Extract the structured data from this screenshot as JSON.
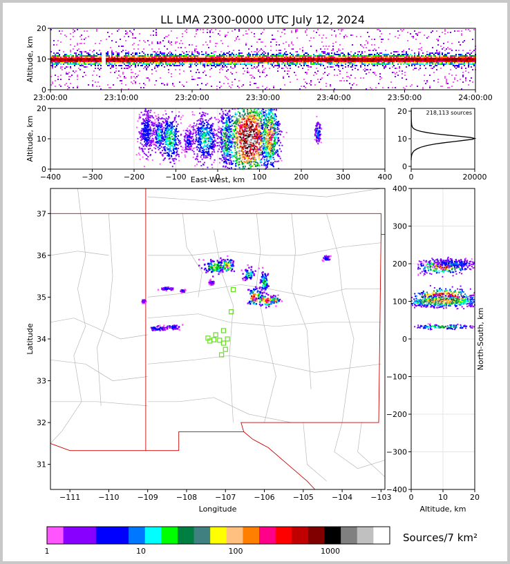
{
  "figure": {
    "title": "LL LMA 2300-0000 UTC July 12, 2024",
    "colorbar_label": "Sources/7 km²",
    "colorbar_ticks": [
      "1",
      "10",
      "100",
      "1000"
    ],
    "colorbar_colors": [
      "#ff55ff",
      "#8800ff",
      "#8800ff",
      "#0000ff",
      "#0000ff",
      "#0077ff",
      "#00ffff",
      "#00ff00",
      "#008040",
      "#408080",
      "#ffff00",
      "#ffc080",
      "#ff8000",
      "#ff0088",
      "#ff0000",
      "#c00000",
      "#800000",
      "#000000",
      "#808080",
      "#c0c0c0",
      "#ffffff"
    ]
  },
  "chart_data": [
    {
      "id": "time-height",
      "type": "heatmap",
      "xlabel": "",
      "ylabel": "Altitude, km",
      "xlim": [
        "23:00:00",
        "24:00:00"
      ],
      "ylim": [
        0,
        20
      ],
      "xticks": [
        "23:00:00",
        "23:10:00",
        "23:20:00",
        "23:30:00",
        "23:40:00",
        "23:50:00",
        "24:00:00"
      ],
      "yticks": [
        "0",
        "10",
        "20"
      ],
      "gap_minutes": [
        7.2,
        7.7
      ],
      "core_altitude_km": 10
    },
    {
      "id": "east-west-altitude",
      "type": "heatmap",
      "xlabel": "East-West, km",
      "ylabel": "Altitude, km",
      "xlim": [
        -400,
        400
      ],
      "ylim": [
        0,
        20
      ],
      "xticks": [
        "−400",
        "−300",
        "−200",
        "−100",
        "0",
        "100",
        "200",
        "300",
        "400"
      ],
      "yticks": [
        "0",
        "10",
        "20"
      ],
      "clusters": [
        {
          "x": -170,
          "z": 12,
          "sx": 10,
          "sz": 4,
          "level": 4
        },
        {
          "x": -140,
          "z": 11,
          "sx": 6,
          "sz": 3,
          "level": 7
        },
        {
          "x": -113,
          "z": 10,
          "sx": 12,
          "sz": 4,
          "level": 8
        },
        {
          "x": -70,
          "z": 9,
          "sx": 6,
          "sz": 2,
          "level": 4
        },
        {
          "x": -30,
          "z": 10,
          "sx": 15,
          "sz": 4,
          "level": 7
        },
        {
          "x": 20,
          "z": 10,
          "sx": 8,
          "sz": 5,
          "level": 10
        },
        {
          "x": 75,
          "z": 10,
          "sx": 28,
          "sz": 7,
          "level": 19
        },
        {
          "x": 125,
          "z": 11,
          "sx": 12,
          "sz": 6,
          "level": 13
        },
        {
          "x": 240,
          "z": 12,
          "sx": 4,
          "sz": 2,
          "level": 5
        }
      ]
    },
    {
      "id": "altitude-histogram",
      "type": "line",
      "annotation": "218,113 sources",
      "xlim": [
        0,
        20000
      ],
      "ylim": [
        0,
        20
      ],
      "xticks": [
        "0",
        "20000"
      ],
      "yticks": [
        "0",
        "10",
        "20"
      ],
      "x": [
        10,
        30,
        80,
        200,
        450,
        900,
        1700,
        3000,
        5000,
        7600,
        10500,
        13600,
        16800,
        19200,
        20000,
        18700,
        15400,
        11400,
        7900,
        5100,
        3100,
        1800,
        1000,
        550,
        300,
        160,
        90,
        50,
        30,
        20
      ],
      "y": [
        3.0,
        3.6,
        4.2,
        4.8,
        5.4,
        6.0,
        6.6,
        7.2,
        7.8,
        8.3,
        8.7,
        9.1,
        9.5,
        9.8,
        10.1,
        10.4,
        10.8,
        11.2,
        11.6,
        12.0,
        12.4,
        12.8,
        13.2,
        13.6,
        14.0,
        14.6,
        15.4,
        16.4,
        17.8,
        19.5
      ]
    },
    {
      "id": "plan-view",
      "type": "heatmap",
      "xlabel": "Longitude",
      "ylabel": "Latitude",
      "xlim": [
        -111.5,
        -102.9
      ],
      "ylim": [
        30.4,
        37.6
      ],
      "xticks": [
        "−111",
        "−110",
        "−109",
        "−108",
        "−107",
        "−106",
        "−105",
        "−104",
        "−103"
      ],
      "yticks": [
        "31",
        "32",
        "33",
        "34",
        "35",
        "36",
        "37"
      ],
      "clusters": [
        {
          "lon": -107.25,
          "lat": 35.72,
          "slon": 0.18,
          "slat": 0.09,
          "level": 9
        },
        {
          "lon": -106.95,
          "lat": 35.75,
          "slon": 0.08,
          "slat": 0.09,
          "level": 12
        },
        {
          "lon": -106.4,
          "lat": 35.55,
          "slon": 0.08,
          "slat": 0.07,
          "level": 9
        },
        {
          "lon": -106.0,
          "lat": 35.35,
          "slon": 0.06,
          "slat": 0.15,
          "level": 8
        },
        {
          "lon": -106.25,
          "lat": 35.0,
          "slon": 0.09,
          "slat": 0.1,
          "level": 18
        },
        {
          "lon": -105.95,
          "lat": 34.92,
          "slon": 0.12,
          "slat": 0.07,
          "level": 15
        },
        {
          "lon": -105.72,
          "lat": 34.92,
          "slon": 0.06,
          "slat": 0.05,
          "level": 13
        },
        {
          "lon": -104.4,
          "lat": 35.92,
          "slon": 0.05,
          "slat": 0.03,
          "level": 5
        },
        {
          "lon": -108.75,
          "lat": 34.25,
          "slon": 0.12,
          "slat": 0.03,
          "level": 5
        },
        {
          "lon": -108.35,
          "lat": 34.28,
          "slon": 0.1,
          "slat": 0.03,
          "level": 4
        },
        {
          "lon": -108.5,
          "lat": 35.2,
          "slon": 0.08,
          "slat": 0.02,
          "level": 4
        },
        {
          "lon": -108.1,
          "lat": 35.15,
          "slon": 0.03,
          "slat": 0.02,
          "level": 3
        },
        {
          "lon": -109.1,
          "lat": 34.9,
          "slon": 0.03,
          "slat": 0.02,
          "level": 2
        },
        {
          "lon": -107.35,
          "lat": 35.35,
          "slon": 0.04,
          "slat": 0.03,
          "level": 3
        }
      ],
      "stations": [
        [
          -106.8,
          35.18
        ],
        [
          -106.85,
          34.65
        ],
        [
          -107.05,
          34.2
        ],
        [
          -107.25,
          34.1
        ],
        [
          -107.45,
          34.02
        ],
        [
          -107.3,
          33.98
        ],
        [
          -107.15,
          33.97
        ],
        [
          -106.95,
          34.0
        ],
        [
          -107.05,
          33.9
        ],
        [
          -107.0,
          33.75
        ],
        [
          -107.1,
          33.62
        ],
        [
          -107.4,
          33.95
        ]
      ]
    },
    {
      "id": "north-south-altitude",
      "type": "heatmap",
      "xlabel": "Altitude, km",
      "ylabel": "North-South, km",
      "xlim": [
        0,
        20
      ],
      "ylim": [
        -400,
        400
      ],
      "xticks": [
        "0",
        "10",
        "20"
      ],
      "yticks": [
        "−400",
        "−300",
        "−200",
        "−100",
        "0",
        "100",
        "200",
        "300",
        "400"
      ],
      "clusters": [
        {
          "z": 10,
          "y": 192,
          "sz": 4,
          "sy": 10,
          "level": 14
        },
        {
          "z": 10,
          "y": 110,
          "sz": 5,
          "sy": 12,
          "level": 20
        },
        {
          "z": 10,
          "y": 100,
          "sz": 7,
          "sy": 8,
          "level": 12
        },
        {
          "z": 10,
          "y": 32,
          "sz": 5,
          "sy": 3,
          "level": 10
        },
        {
          "z": 14,
          "y": 200,
          "sz": 4,
          "sy": 6,
          "level": 5
        }
      ]
    }
  ]
}
